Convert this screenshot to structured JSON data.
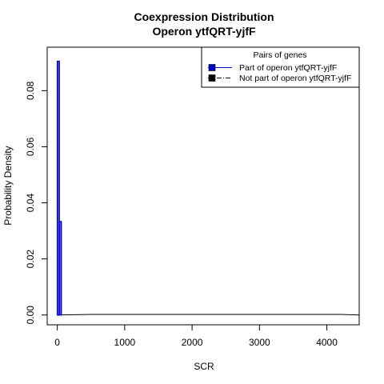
{
  "chart_data": {
    "type": "histogram",
    "title": [
      "Coexpression Distribution",
      "Operon ytfQRT-yjfF"
    ],
    "xlabel": "SCR",
    "ylabel": "Probability Density",
    "xlim": [
      -150,
      4480
    ],
    "ylim": [
      -0.0035,
      0.0955
    ],
    "x_ticks": [
      0,
      1000,
      2000,
      3000,
      4000
    ],
    "x_tick_labels": [
      "0",
      "1000",
      "2000",
      "3000",
      "4000"
    ],
    "y_ticks": [
      0.0,
      0.02,
      0.04,
      0.06,
      0.08
    ],
    "y_tick_labels": [
      "0.00",
      "0.02",
      "0.04",
      "0.06",
      "0.08"
    ],
    "grid": false,
    "legend": {
      "title": "Pairs of genes",
      "placement": "top-right",
      "entries": [
        {
          "label": "Part of operon ytfQRT-yjfF",
          "color": "#0000cc",
          "line": "solid"
        },
        {
          "label": "Not part of operon ytfQRT-yjfF",
          "color": "#000000",
          "line": "dashdot"
        }
      ]
    },
    "series": [
      {
        "label_ref": 0,
        "color": "#0000cc",
        "fill": "#5a5aff",
        "bins": [
          {
            "x0": 0,
            "x1": 30,
            "density": 0.0905
          },
          {
            "x0": 30,
            "x1": 60,
            "density": 0.0333
          }
        ]
      },
      {
        "label_ref": 1,
        "color": "#000000",
        "curve": [
          [
            0,
            0.0
          ],
          [
            500,
            0.0002
          ],
          [
            1000,
            0.0002
          ],
          [
            2000,
            0.0002
          ],
          [
            3000,
            0.0002
          ],
          [
            4000,
            0.0002
          ],
          [
            4200,
            0.0002
          ],
          [
            4480,
            0.0
          ]
        ]
      }
    ]
  }
}
